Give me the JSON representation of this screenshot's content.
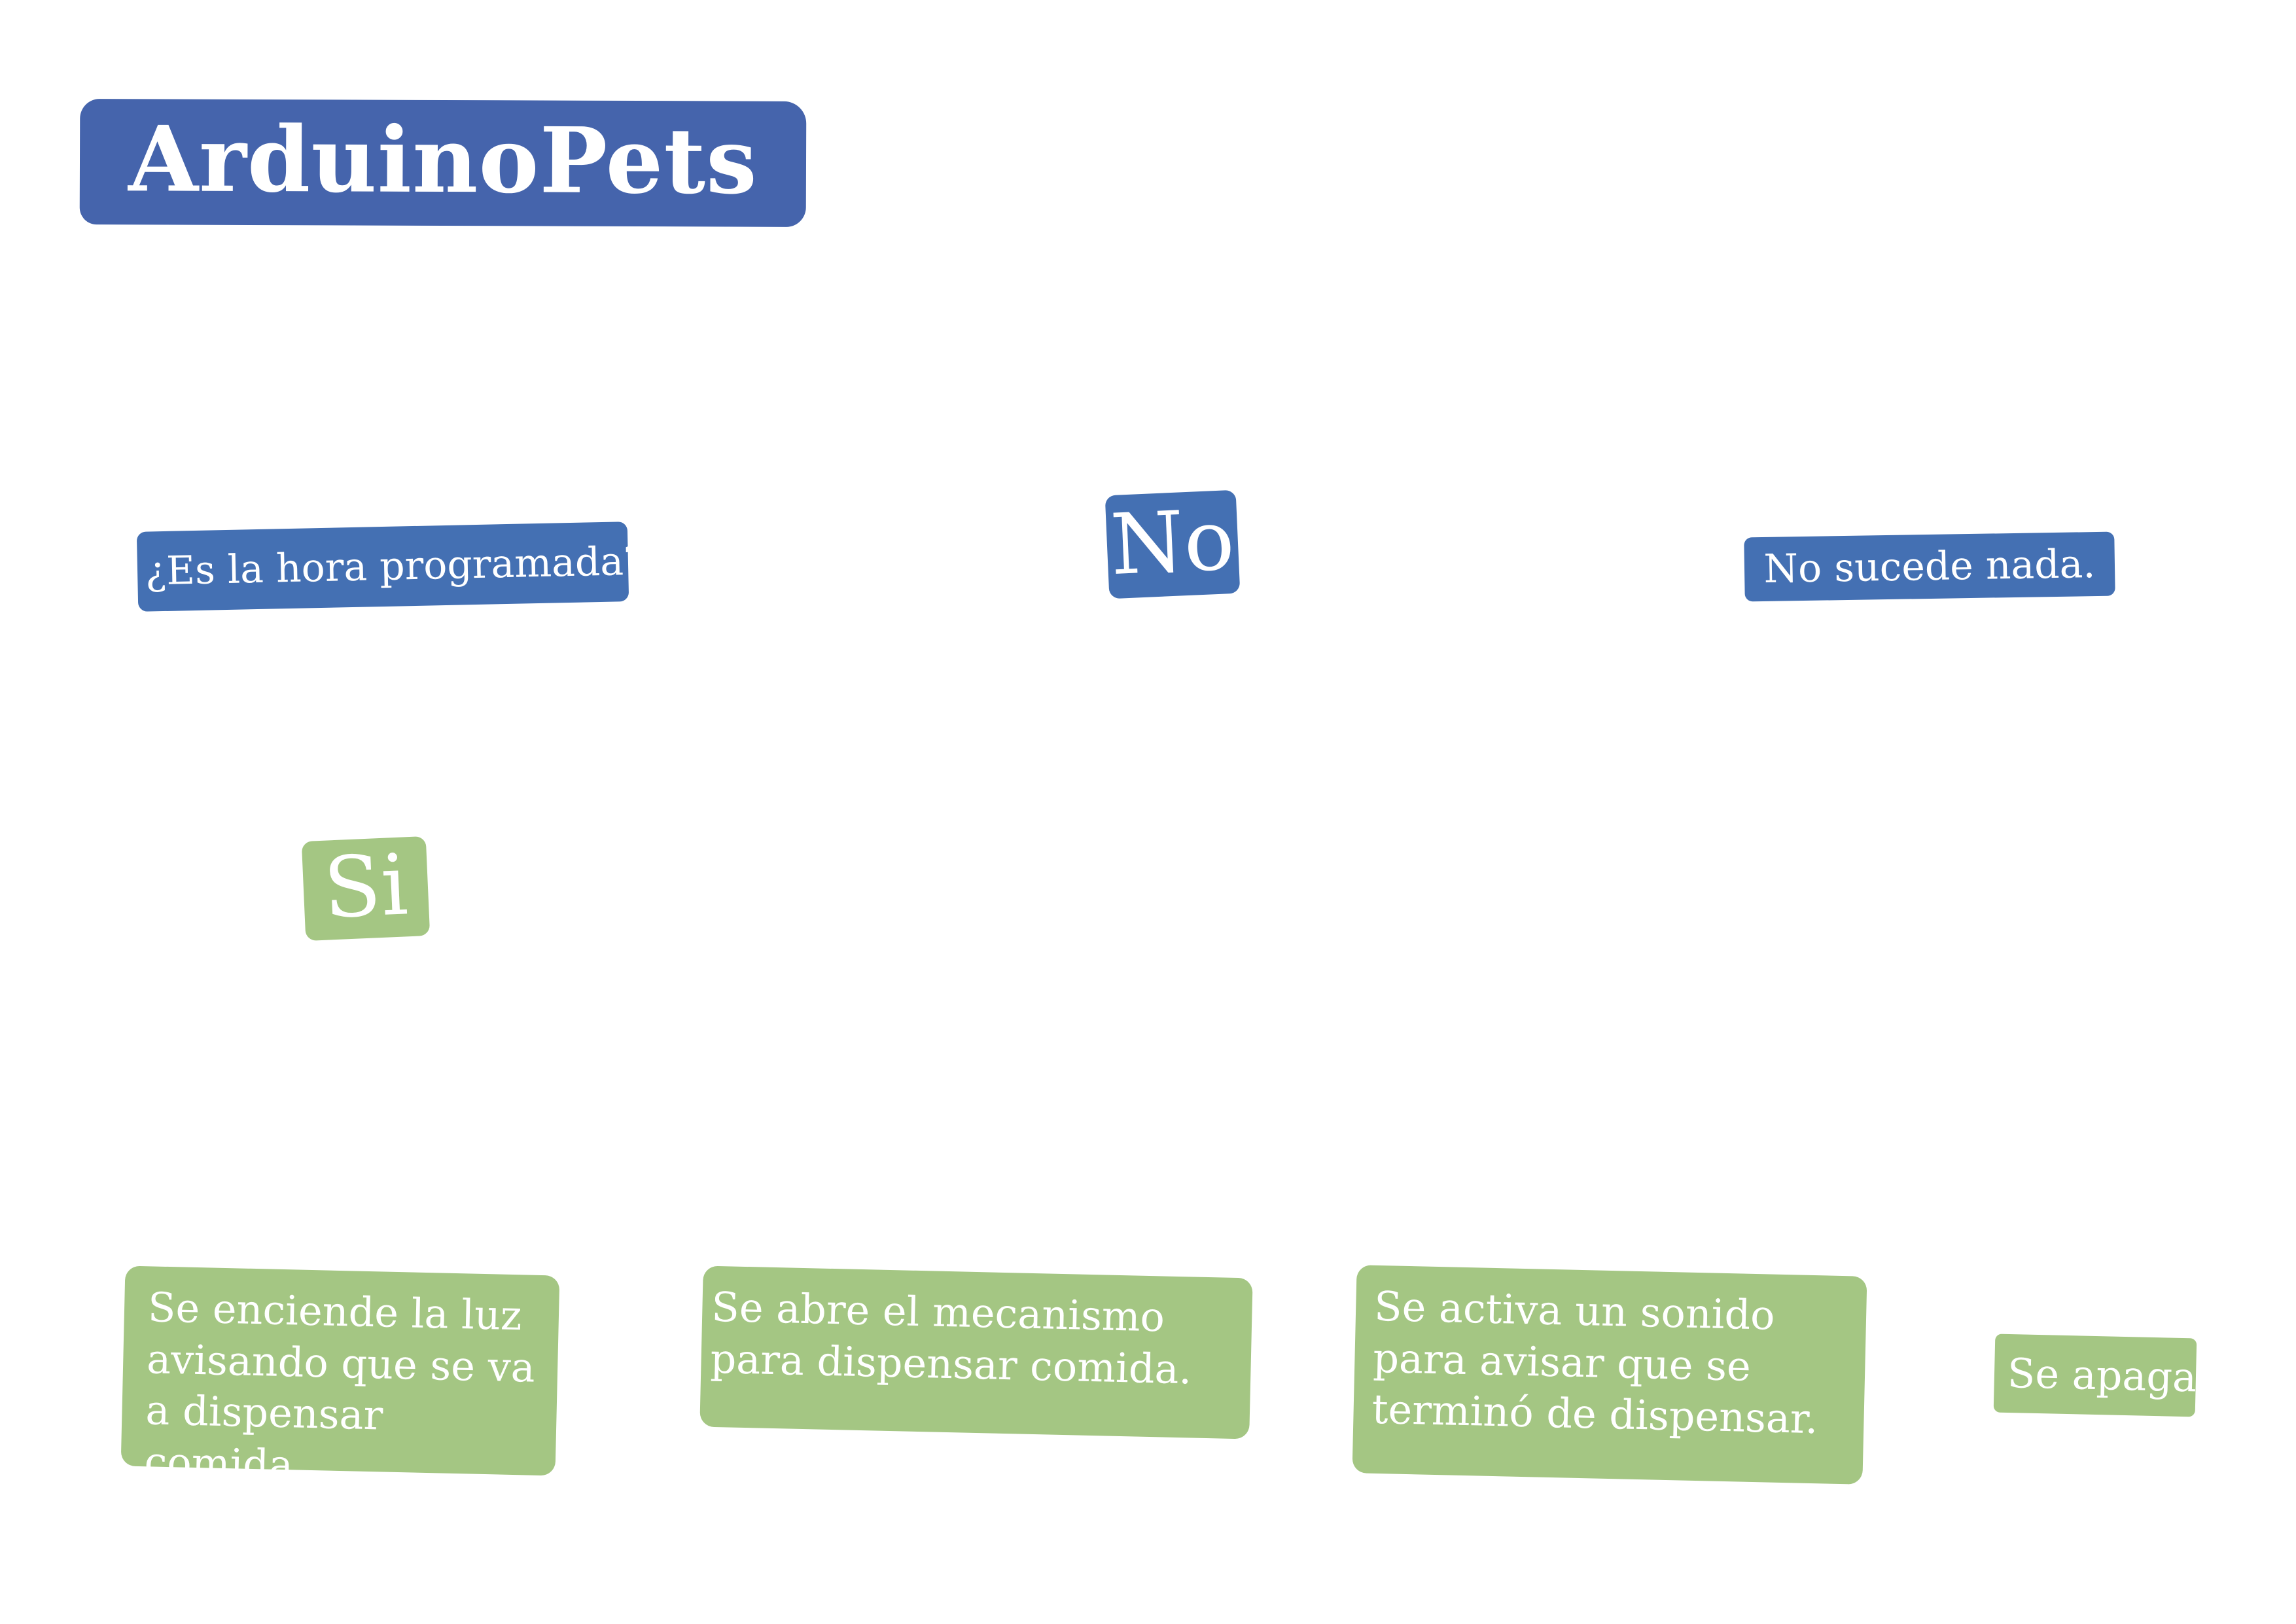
{
  "title": "ArduinoPets",
  "nodes": {
    "question": "¿Es la hora programada?",
    "no_label": "No",
    "no_result": "No sucede nada.",
    "yes_label": "Si",
    "step1": "Se enciende la luz avisando que se va a dispensar comida.",
    "step2": "Se abre el mecanismo para dispensar comida.",
    "step3": "Se activa un sonido para avisar que se terminó de dispensar.",
    "step4": "Se apaga."
  },
  "colors": {
    "title_blue": "#4564ac",
    "node_blue": "#4470b3",
    "node_green": "#a4c683",
    "text": "#ffffff",
    "background": "#ffffff"
  }
}
